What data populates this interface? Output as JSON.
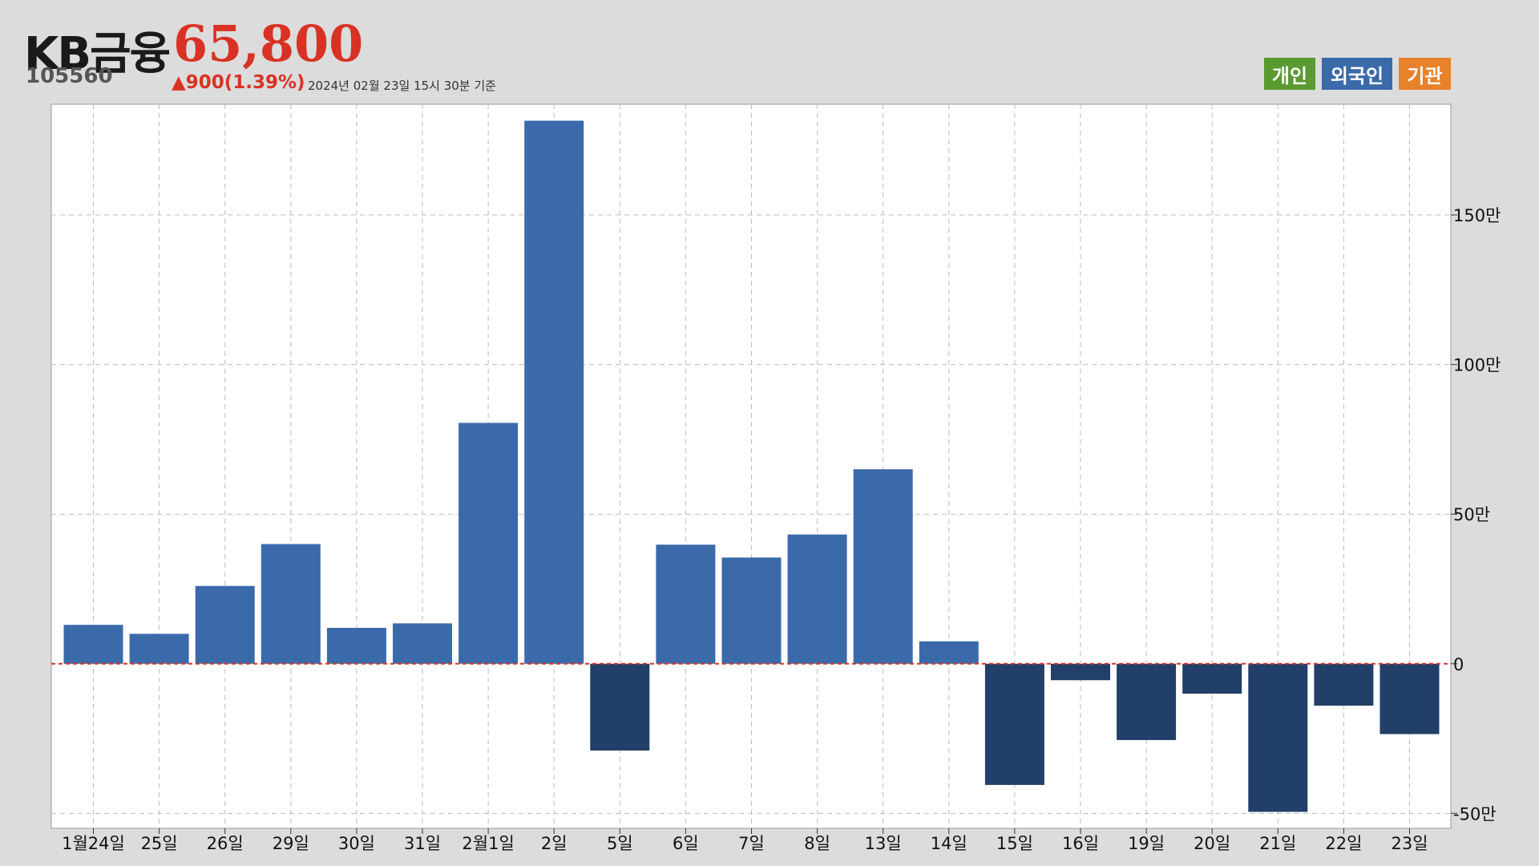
{
  "header": {
    "stock_name": "KB금융",
    "stock_code": "105560",
    "price": "65,800",
    "change": "▲900(1.39%)",
    "timestamp": "2024년 02월 23일 15시 30분 기준"
  },
  "legend": {
    "individual": {
      "label": "개인",
      "color": "#5a9a30"
    },
    "foreign": {
      "label": "외국인",
      "color": "#3b6aaa"
    },
    "institution": {
      "label": "기관",
      "color": "#e8822a"
    }
  },
  "colors": {
    "positive_bar": "#3b6aaa",
    "negative_bar": "#213f68",
    "zero_line": "#d93224",
    "grid": "#bbbbbb"
  },
  "chart_data": {
    "type": "bar",
    "series_name": "외국인",
    "categories": [
      "1월24일",
      "25일",
      "26일",
      "29일",
      "30일",
      "31일",
      "2월1일",
      "2일",
      "5일",
      "6일",
      "7일",
      "8일",
      "13일",
      "14일",
      "15일",
      "16일",
      "19일",
      "20일",
      "21일",
      "22일",
      "23일"
    ],
    "values": [
      130000,
      100000,
      260000,
      400000,
      120000,
      135000,
      805000,
      1815000,
      -290000,
      398000,
      355000,
      432000,
      650000,
      75000,
      -405000,
      -55000,
      -255000,
      -100000,
      -495000,
      -140000,
      -235000
    ],
    "ylim": [
      -550000,
      1870000
    ],
    "yticks": [
      {
        "value": -500000,
        "label": "-50만"
      },
      {
        "value": 0,
        "label": "0"
      },
      {
        "value": 500000,
        "label": "50만"
      },
      {
        "value": 1000000,
        "label": "100만"
      },
      {
        "value": 1500000,
        "label": "150만"
      }
    ],
    "grid": true,
    "xlabel": "",
    "ylabel": ""
  }
}
